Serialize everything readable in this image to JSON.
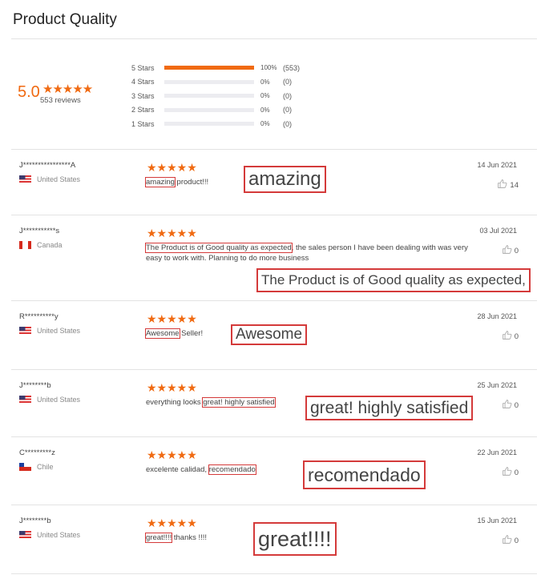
{
  "header": {
    "title": "Product Quality"
  },
  "summary": {
    "score": "5.0",
    "stars": "★★★★★",
    "reviews": "553 reviews",
    "histogram": [
      {
        "label": "5 Stars",
        "percent": 100,
        "percent_label": "100%",
        "count": "(553)"
      },
      {
        "label": "4 Stars",
        "percent": 0,
        "percent_label": "0%",
        "count": "(0)"
      },
      {
        "label": "3 Stars",
        "percent": 0,
        "percent_label": "0%",
        "count": "(0)"
      },
      {
        "label": "2 Stars",
        "percent": 0,
        "percent_label": "0%",
        "count": "(0)"
      },
      {
        "label": "1 Stars",
        "percent": 0,
        "percent_label": "0%",
        "count": "(0)"
      }
    ]
  },
  "colors": {
    "accent": "#f06a12",
    "highlight": "#d43a3a"
  },
  "reviews": [
    {
      "name": "J****************A",
      "country": "United States",
      "flag": "us",
      "stars": "★★★★★",
      "before": "",
      "highlight": "amazing",
      "after": " product!!!",
      "date": "14 Jun 2021",
      "likes": "14",
      "callout": "amazing",
      "like_icon": "thumbs-up-icon"
    },
    {
      "name": "J***********s",
      "country": "Canada",
      "flag": "ca",
      "stars": "★★★★★",
      "before": "",
      "highlight": "The Product is of Good quality as expected",
      "after": ", the sales person I have been dealing with was very easy to work with. Planning to do more business",
      "date": "03 Jul 2021",
      "likes": "0",
      "callout": "The Product is of Good quality as expected,",
      "like_icon": "thumbs-up-icon"
    },
    {
      "name": "R**********y",
      "country": "United States",
      "flag": "us",
      "stars": "★★★★★",
      "before": "",
      "highlight": "Awesome",
      "after": " Seller!",
      "date": "28 Jun 2021",
      "likes": "0",
      "callout": "Awesome",
      "like_icon": "thumbs-up-icon"
    },
    {
      "name": "J********b",
      "country": "United States",
      "flag": "us",
      "stars": "★★★★★",
      "before": "everything looks ",
      "highlight": "great! highly satisfied",
      "after": "",
      "date": "25 Jun 2021",
      "likes": "0",
      "callout": "great! highly satisfied",
      "like_icon": "thumbs-up-icon"
    },
    {
      "name": "C*********z",
      "country": "Chile",
      "flag": "cl",
      "stars": "★★★★★",
      "before": "excelente calidad, ",
      "highlight": "recomendado",
      "after": "",
      "date": "22 Jun 2021",
      "likes": "0",
      "callout": "recomendado",
      "like_icon": "thumbs-up-icon"
    },
    {
      "name": "J********b",
      "country": "United States",
      "flag": "us",
      "stars": "★★★★★",
      "before": "",
      "highlight": "great!!!!",
      "after": " thanks !!!!",
      "date": "15 Jun 2021",
      "likes": "0",
      "callout": "great!!!!",
      "like_icon": "thumbs-up-icon"
    }
  ]
}
